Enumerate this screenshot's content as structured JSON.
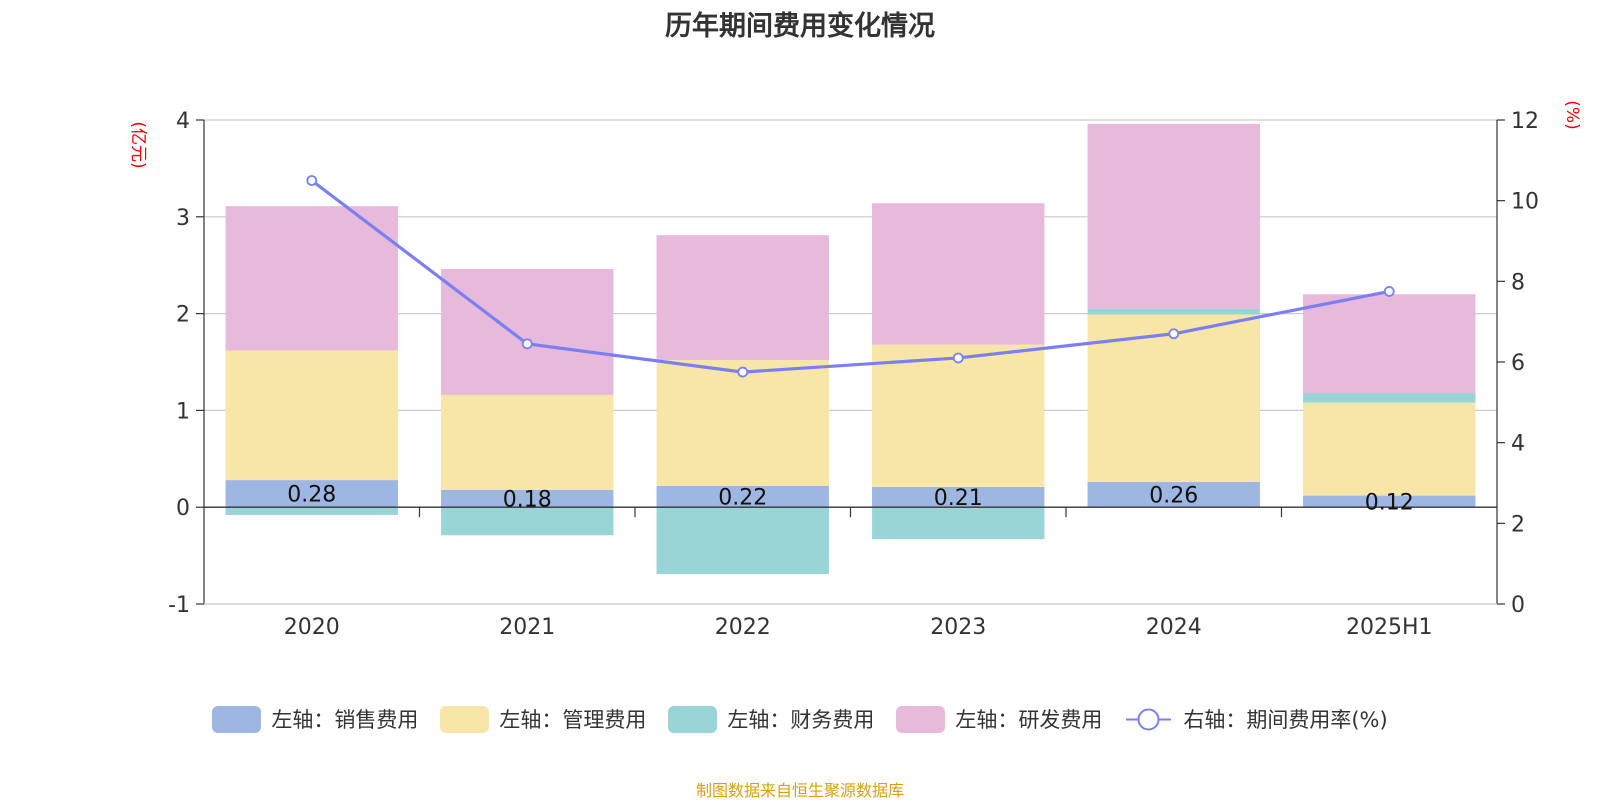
{
  "title": "历年期间费用变化情况",
  "footer": "制图数据来自恒生聚源数据库",
  "chart_data": {
    "type": "bar",
    "title": "历年期间费用变化情况",
    "categories": [
      "2020",
      "2021",
      "2022",
      "2023",
      "2024",
      "2025H1"
    ],
    "left_axis": {
      "unit_label": "(亿元)",
      "ylim": [
        -1,
        4
      ],
      "ticks": [
        "-1",
        "0",
        "1",
        "2",
        "3",
        "4"
      ]
    },
    "right_axis": {
      "unit_label": "(%)",
      "ylim": [
        0,
        12
      ],
      "ticks": [
        "0",
        "2",
        "4",
        "6",
        "8",
        "10",
        "12"
      ]
    },
    "grid": true,
    "legend_position": "bottom",
    "series": [
      {
        "name": "左轴：销售费用",
        "type": "bar",
        "axis": "left",
        "color": "#9db6e2",
        "values": [
          0.28,
          0.18,
          0.22,
          0.21,
          0.26,
          0.12
        ],
        "labels": [
          "0.28",
          "0.18",
          "0.22",
          "0.21",
          "0.26",
          "0.12"
        ]
      },
      {
        "name": "左轴：管理费用",
        "type": "bar",
        "axis": "left",
        "color": "#f8e6a8",
        "values": [
          1.34,
          0.98,
          1.3,
          1.47,
          1.73,
          0.96
        ]
      },
      {
        "name": "左轴：财务费用",
        "type": "bar",
        "axis": "left",
        "color": "#99d5d6",
        "values": [
          -0.08,
          -0.29,
          -0.69,
          -0.33,
          0.06,
          0.1
        ]
      },
      {
        "name": "左轴：研发费用",
        "type": "bar",
        "axis": "left",
        "color": "#e7b9da",
        "values": [
          1.49,
          1.3,
          1.29,
          1.46,
          1.91,
          1.02
        ]
      },
      {
        "name": "右轴：期间费用率(%)",
        "type": "line",
        "axis": "right",
        "color": "#7b7ff0",
        "values": [
          10.5,
          6.45,
          5.75,
          6.1,
          6.7,
          7.75
        ]
      }
    ]
  }
}
